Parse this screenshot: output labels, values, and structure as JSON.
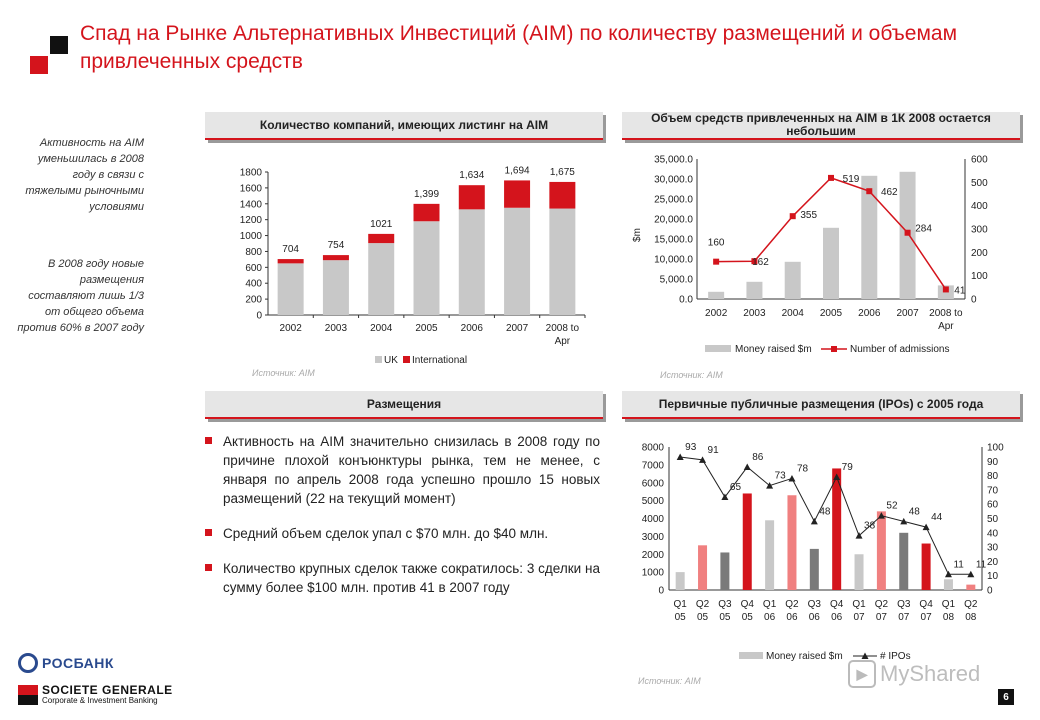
{
  "title": "Спад на Рынке Альтернативных Инвестиций (AIM) по количеству размещений и объемам привлеченных средств",
  "colors": {
    "accent": "#d4141c",
    "grey_bar": "#c8c8c8",
    "dark_grey": "#7a7a7a",
    "pink": "#f08080"
  },
  "side_notes": [
    "Активность на AIM уменьшилась в 2008 году в связи с тяжелыми рыночными условиями",
    "В 2008 году новые размещения составляют лишь 1/3 от общего объема против 60% в 2007 году"
  ],
  "sections": {
    "listings": "Количество компаний, имеющих листинг на AIM",
    "money": "Объем средств привлеченных на AIM в 1К 2008 остается небольшим",
    "placements": "Размещения",
    "ipos": "Первичные публичные размещения (IPOs) с 2005 года"
  },
  "sources": {
    "s1": "Источник: AIM",
    "s2": "Источник: AIM",
    "s3": "Источник: AIM"
  },
  "bullets": [
    "Активность на AIM значительно снизилась в 2008 году по причине плохой конъюнктуры рынка, тем не менее, с января по апрель 2008 года успешно прошло 15 новых размещений (22 на текущий момент)",
    "Средний объем сделок упал с $70 млн. до $40 млн.",
    "Количество крупных сделок также сократилось: 3 сделки на сумму более $100 млн. против 41 в 2007 году"
  ],
  "footer": {
    "rosbank": "РОСБАНК",
    "sg_line1": "SOCIETE GENERALE",
    "sg_line2": "Corporate & Investment Banking",
    "watermark": "MyShared",
    "page": "6"
  },
  "chart_data": [
    {
      "type": "bar",
      "stacked": true,
      "categories": [
        "2002",
        "2003",
        "2004",
        "2005",
        "2006",
        "2007",
        "2008 to Apr"
      ],
      "series": [
        {
          "name": "UK",
          "color": "#c8c8c8",
          "values": [
            650,
            690,
            905,
            1180,
            1330,
            1350,
            1340
          ]
        },
        {
          "name": "International",
          "color": "#d4141c",
          "values": [
            54,
            64,
            116,
            219,
            304,
            344,
            335
          ]
        }
      ],
      "totals_labels": [
        "704",
        "754",
        "1021",
        "1,399",
        "1,634",
        "1,694",
        "1,675"
      ],
      "ylim": [
        0,
        1800
      ],
      "yticks": [
        0,
        200,
        400,
        600,
        800,
        1000,
        1200,
        1400,
        1600,
        1800
      ],
      "legend": "bottom"
    },
    {
      "type": "bar+line",
      "categories": [
        "2002",
        "2003",
        "2004",
        "2005",
        "2006",
        "2007",
        "2008 to Apr"
      ],
      "series": [
        {
          "name": "Money raised $m",
          "type": "bar",
          "axis": "left",
          "values": [
            1800,
            4300,
            9300,
            17800,
            30800,
            31800,
            3400
          ]
        },
        {
          "name": "Number of admissions",
          "type": "line",
          "axis": "right",
          "values": [
            160,
            162,
            355,
            519,
            462,
            284,
            41
          ]
        }
      ],
      "ylabel": "$m",
      "ylim_left": [
        0,
        35000
      ],
      "ylim_right": [
        0,
        600
      ],
      "yticks_left": [
        "0.0",
        "5,000.0",
        "10,000.0",
        "15,000.0",
        "20,000.0",
        "25,000.0",
        "30,000.0",
        "35,000.0"
      ],
      "yticks_right": [
        0,
        100,
        200,
        300,
        400,
        500,
        600
      ],
      "legend": "bottom"
    },
    {
      "type": "bar+line",
      "categories": [
        "Q1 05",
        "Q2 05",
        "Q3 05",
        "Q4 05",
        "Q1 06",
        "Q2 06",
        "Q3 06",
        "Q4 06",
        "Q1 07",
        "Q2 07",
        "Q3 07",
        "Q4 07",
        "Q1 08",
        "Q2 08"
      ],
      "series": [
        {
          "name": "Money raised $m",
          "type": "bar",
          "axis": "left",
          "values": [
            1000,
            2500,
            2100,
            5400,
            3900,
            5300,
            2300,
            6800,
            2000,
            4400,
            3200,
            2600,
            600,
            300
          ],
          "colors": [
            "#c8c8c8",
            "#f08080",
            "#7a7a7a",
            "#d4141c",
            "#c8c8c8",
            "#f08080",
            "#7a7a7a",
            "#d4141c",
            "#c8c8c8",
            "#f08080",
            "#7a7a7a",
            "#d4141c",
            "#c8c8c8",
            "#f08080"
          ]
        },
        {
          "name": "# IPOs",
          "type": "line",
          "axis": "right",
          "values": [
            93,
            91,
            65,
            86,
            73,
            78,
            48,
            79,
            38,
            52,
            48,
            44,
            11,
            11
          ]
        }
      ],
      "ylim_left": [
        0,
        8000
      ],
      "ylim_right": [
        0,
        100
      ],
      "yticks_left": [
        0,
        1000,
        2000,
        3000,
        4000,
        5000,
        6000,
        7000,
        8000
      ],
      "yticks_right": [
        0,
        10,
        20,
        30,
        40,
        50,
        60,
        70,
        80,
        90,
        100
      ],
      "legend": "bottom"
    }
  ]
}
